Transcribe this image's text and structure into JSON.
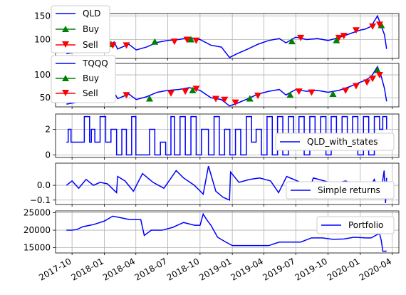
{
  "chart_data": [
    {
      "type": "line",
      "panel": "qld_price",
      "series": [
        {
          "name": "QLD",
          "color": "#0000ff",
          "x": [
            "2017-09-15",
            "2017-10-15",
            "2017-11-15",
            "2017-12-15",
            "2018-01-15",
            "2018-01-29",
            "2018-02-08",
            "2018-03-12",
            "2018-04-02",
            "2018-05-01",
            "2018-06-01",
            "2018-07-01",
            "2018-08-01",
            "2018-09-01",
            "2018-10-01",
            "2018-11-01",
            "2018-12-01",
            "2018-12-24",
            "2019-01-15",
            "2019-02-15",
            "2019-03-15",
            "2019-04-15",
            "2019-05-15",
            "2019-06-03",
            "2019-07-01",
            "2019-08-01",
            "2019-09-01",
            "2019-10-01",
            "2019-11-01",
            "2019-12-01",
            "2020-01-01",
            "2020-01-15",
            "2020-02-01",
            "2020-02-19",
            "2020-03-01",
            "2020-03-10",
            "2020-03-16"
          ],
          "y": [
            70,
            74,
            78,
            82,
            88,
            95,
            80,
            90,
            78,
            84,
            94,
            98,
            100,
            104,
            100,
            88,
            84,
            62,
            70,
            80,
            90,
            98,
            102,
            93,
            105,
            100,
            102,
            98,
            104,
            112,
            120,
            122,
            128,
            150,
            128,
            110,
            80
          ]
        },
        {
          "name": "Buy",
          "color": "#008000",
          "marker": "triangle-up",
          "x": [
            "2017-11-15",
            "2018-01-20",
            "2018-05-25",
            "2018-09-05",
            "2019-06-20",
            "2019-10-25",
            "2020-03-01"
          ],
          "y": [
            82,
            90,
            95,
            100,
            96,
            98,
            130
          ]
        },
        {
          "name": "Sell",
          "color": "#ff0000",
          "marker": "triangle-down",
          "x": [
            "2017-12-20",
            "2018-01-25",
            "2018-03-05",
            "2018-07-20",
            "2018-08-25",
            "2018-09-20",
            "2019-07-15",
            "2019-11-01",
            "2019-11-15",
            "2019-12-20",
            "2020-02-05",
            "2020-02-25"
          ],
          "y": [
            84,
            88,
            88,
            96,
            100,
            98,
            104,
            104,
            108,
            120,
            128,
            132
          ]
        }
      ],
      "ylim": [
        60,
        155
      ],
      "yticks": [
        100,
        150
      ],
      "legend": "upper left",
      "grid": true
    },
    {
      "type": "line",
      "panel": "tqqq_price",
      "series": [
        {
          "name": "TQQQ",
          "color": "#0000ff",
          "x": [
            "2017-09-15",
            "2017-10-15",
            "2017-11-15",
            "2017-12-15",
            "2018-01-15",
            "2018-01-29",
            "2018-02-08",
            "2018-03-12",
            "2018-04-02",
            "2018-05-01",
            "2018-06-01",
            "2018-07-01",
            "2018-08-01",
            "2018-09-01",
            "2018-10-01",
            "2018-11-01",
            "2018-12-01",
            "2018-12-24",
            "2019-01-15",
            "2019-02-15",
            "2019-03-15",
            "2019-04-15",
            "2019-05-15",
            "2019-06-03",
            "2019-07-01",
            "2019-08-01",
            "2019-09-01",
            "2019-10-01",
            "2019-11-01",
            "2019-12-01",
            "2020-01-01",
            "2020-01-15",
            "2020-02-01",
            "2020-02-19",
            "2020-03-01",
            "2020-03-10",
            "2020-03-16"
          ],
          "y": [
            36,
            40,
            44,
            48,
            56,
            62,
            48,
            58,
            46,
            52,
            62,
            66,
            68,
            72,
            66,
            50,
            46,
            32,
            38,
            48,
            58,
            64,
            68,
            56,
            68,
            64,
            66,
            62,
            66,
            74,
            84,
            88,
            96,
            118,
            96,
            70,
            42
          ]
        },
        {
          "name": "Buy",
          "color": "#008000",
          "marker": "triangle-up",
          "x": [
            "2018-05-10",
            "2018-09-10",
            "2019-02-20",
            "2019-06-15",
            "2019-10-15",
            "2020-02-19"
          ],
          "y": [
            48,
            66,
            48,
            56,
            58,
            110
          ]
        },
        {
          "name": "Sell",
          "color": "#ff0000",
          "marker": "triangle-down",
          "x": [
            "2018-03-05",
            "2018-07-10",
            "2018-08-20",
            "2018-09-20",
            "2018-11-15",
            "2018-12-10",
            "2019-01-10",
            "2019-03-15",
            "2019-07-10",
            "2019-08-15",
            "2019-11-20",
            "2019-12-20",
            "2020-01-20",
            "2020-02-05",
            "2020-02-25"
          ],
          "y": [
            56,
            60,
            64,
            70,
            48,
            46,
            40,
            55,
            64,
            62,
            66,
            76,
            84,
            92,
            100
          ]
        }
      ],
      "ylim": [
        30,
        125
      ],
      "yticks": [
        50,
        100
      ],
      "legend": "upper left",
      "grid": true
    },
    {
      "type": "line",
      "panel": "states",
      "series": [
        {
          "name": "QLD_with_states",
          "color": "#0000ff",
          "drawstyle": "steps",
          "x": [
            "2017-09-15",
            "2017-09-20",
            "2017-09-28",
            "2017-10-15",
            "2017-11-05",
            "2017-11-20",
            "2017-11-25",
            "2017-12-05",
            "2017-12-20",
            "2018-01-05",
            "2018-01-20",
            "2018-02-05",
            "2018-02-20",
            "2018-03-05",
            "2018-03-20",
            "2018-04-01",
            "2018-04-20",
            "2018-05-10",
            "2018-05-25",
            "2018-06-10",
            "2018-06-25",
            "2018-07-10",
            "2018-07-20",
            "2018-08-05",
            "2018-08-20",
            "2018-09-05",
            "2018-09-20",
            "2018-10-05",
            "2018-10-25",
            "2018-11-10",
            "2018-11-25",
            "2018-12-10",
            "2018-12-25",
            "2019-01-10",
            "2019-01-25",
            "2019-02-10",
            "2019-02-25",
            "2019-03-10",
            "2019-03-25",
            "2019-04-10",
            "2019-04-25",
            "2019-05-10",
            "2019-05-25",
            "2019-06-10",
            "2019-06-25",
            "2019-07-10",
            "2019-07-25",
            "2019-08-10",
            "2019-08-25",
            "2019-09-10",
            "2019-09-25",
            "2019-10-10",
            "2019-10-25",
            "2019-11-10",
            "2019-11-25",
            "2019-12-10",
            "2019-12-25",
            "2020-01-10",
            "2020-01-25",
            "2020-02-10",
            "2020-02-25",
            "2020-03-05",
            "2020-03-16"
          ],
          "y": [
            1,
            2,
            1,
            1,
            3,
            1,
            2,
            1,
            3,
            1,
            2,
            0,
            2,
            0,
            3,
            0,
            0,
            2,
            0,
            1,
            0,
            3,
            0,
            3,
            0,
            3,
            0,
            2,
            0,
            3,
            0,
            2,
            0,
            2,
            0,
            3,
            1,
            2,
            0,
            3,
            0,
            3,
            0,
            3,
            1,
            3,
            0,
            3,
            1,
            3,
            0,
            3,
            1,
            3,
            1,
            3,
            0,
            3,
            0,
            3,
            2,
            3,
            2
          ]
        }
      ],
      "ylim": [
        -0.2,
        3.2
      ],
      "yticks": [
        0,
        2
      ],
      "legend": "lower right",
      "grid": true
    },
    {
      "type": "line",
      "panel": "returns",
      "series": [
        {
          "name": "Simple returns",
          "color": "#0000ff",
          "x": [
            "2017-09-15",
            "2017-10-01",
            "2017-10-20",
            "2017-11-10",
            "2017-12-01",
            "2017-12-20",
            "2018-01-10",
            "2018-02-05",
            "2018-02-08",
            "2018-03-01",
            "2018-03-25",
            "2018-04-20",
            "2018-05-20",
            "2018-06-20",
            "2018-07-25",
            "2018-08-15",
            "2018-09-15",
            "2018-10-10",
            "2018-10-25",
            "2018-11-15",
            "2018-12-05",
            "2018-12-24",
            "2018-12-27",
            "2019-01-20",
            "2019-02-20",
            "2019-03-20",
            "2019-04-20",
            "2019-05-13",
            "2019-06-05",
            "2019-07-15",
            "2019-08-05",
            "2019-08-20",
            "2019-09-20",
            "2019-10-20",
            "2019-11-20",
            "2019-12-20",
            "2020-01-20",
            "2020-02-10",
            "2020-02-27",
            "2020-03-09",
            "2020-03-13",
            "2020-03-16"
          ],
          "y": [
            0.0,
            0.03,
            -0.02,
            0.04,
            0.0,
            0.02,
            0.01,
            -0.05,
            0.06,
            0.03,
            -0.04,
            0.08,
            0.02,
            -0.02,
            0.1,
            0.05,
            0.0,
            -0.06,
            0.13,
            -0.04,
            -0.08,
            -0.1,
            0.09,
            0.02,
            0.04,
            0.05,
            0.03,
            -0.05,
            0.06,
            0.02,
            -0.06,
            0.05,
            0.03,
            0.01,
            0.03,
            0.0,
            -0.04,
            0.04,
            -0.08,
            0.1,
            -0.12,
            0.05
          ]
        }
      ],
      "ylim": [
        -0.13,
        0.15
      ],
      "yticks": [
        -0.1,
        0.0
      ],
      "legend": "lower right",
      "grid": true
    },
    {
      "type": "line",
      "panel": "portfolio",
      "series": [
        {
          "name": "Portfolio",
          "color": "#0000ff",
          "x": [
            "2017-09-15",
            "2017-10-01",
            "2017-10-15",
            "2017-11-01",
            "2017-12-01",
            "2018-01-01",
            "2018-01-25",
            "2018-02-15",
            "2018-03-15",
            "2018-04-15",
            "2018-04-25",
            "2018-05-15",
            "2018-06-15",
            "2018-07-15",
            "2018-08-15",
            "2018-09-15",
            "2018-10-01",
            "2018-10-10",
            "2018-10-20",
            "2018-11-01",
            "2018-11-20",
            "2018-12-10",
            "2019-01-01",
            "2019-01-15",
            "2019-02-15",
            "2019-03-15",
            "2019-04-15",
            "2019-05-15",
            "2019-06-15",
            "2019-07-15",
            "2019-08-15",
            "2019-09-15",
            "2019-10-15",
            "2019-11-15",
            "2019-12-15",
            "2020-01-15",
            "2020-02-01",
            "2020-02-19",
            "2020-02-25",
            "2020-03-01",
            "2020-03-05",
            "2020-03-16"
          ],
          "y": [
            20000,
            20000,
            20200,
            21000,
            21600,
            22600,
            24000,
            23600,
            23000,
            23000,
            18500,
            20000,
            20000,
            20800,
            22200,
            21400,
            21400,
            24600,
            23000,
            21400,
            18000,
            16800,
            15600,
            15600,
            15600,
            15600,
            15600,
            16600,
            16600,
            16600,
            17800,
            17800,
            17400,
            17500,
            18000,
            17800,
            17800,
            18800,
            19000,
            17000,
            14000,
            14000
          ]
        }
      ],
      "ylim": [
        13500,
        25500
      ],
      "yticks": [
        15000,
        20000,
        25000
      ],
      "legend": "upper right",
      "grid": true
    }
  ],
  "x_axis": {
    "range": [
      "2017-08-15",
      "2020-04-20"
    ],
    "ticks": [
      "2017-10",
      "2018-01",
      "2018-04",
      "2018-07",
      "2018-10",
      "2019-01",
      "2019-04",
      "2019-07",
      "2019-10",
      "2020-01",
      "2020-04"
    ]
  },
  "legends": {
    "qld": [
      "QLD",
      "Buy",
      "Sell"
    ],
    "tqqq": [
      "TQQQ",
      "Buy",
      "Sell"
    ],
    "states": "QLD_with_states",
    "returns": "Simple returns",
    "portfolio": "Portfolio"
  }
}
